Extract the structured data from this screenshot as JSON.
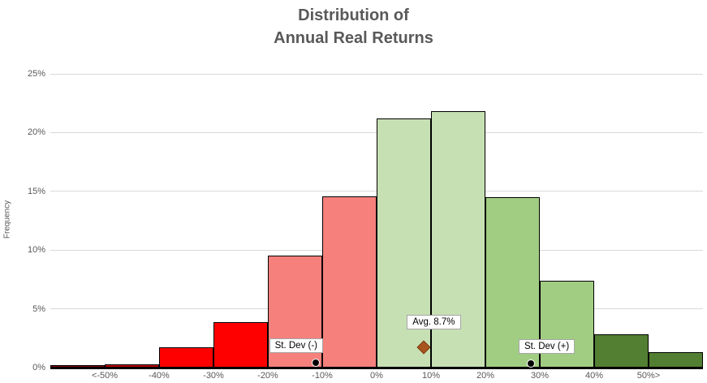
{
  "chart_data": {
    "type": "bar",
    "subtype": "histogram",
    "title_lines": [
      "Distribution of",
      "Annual Real Returns"
    ],
    "ylabel": "Frequency",
    "xlabel": "",
    "ylim": [
      0,
      25
    ],
    "grid": "horizontal",
    "legend": "none",
    "colors": {
      "background": "#ffffff",
      "gridline": "#d9d9d9",
      "axis_line": "#000000",
      "text": "#595959",
      "bar_border": "#000000"
    },
    "yticks": [
      {
        "value": 0,
        "label": "0%"
      },
      {
        "value": 5,
        "label": "5%"
      },
      {
        "value": 10,
        "label": "10%"
      },
      {
        "value": 15,
        "label": "15%"
      },
      {
        "value": 20,
        "label": "20%"
      },
      {
        "value": 25,
        "label": "25%"
      }
    ],
    "x_edge_ticks": [
      {
        "value": -50,
        "label": "<-50%"
      },
      {
        "value": -40,
        "label": "-40%"
      },
      {
        "value": -30,
        "label": "-30%"
      },
      {
        "value": -20,
        "label": "-20%"
      },
      {
        "value": -10,
        "label": "-10%"
      },
      {
        "value": 0,
        "label": "0%"
      },
      {
        "value": 10,
        "label": "10%"
      },
      {
        "value": 20,
        "label": "20%"
      },
      {
        "value": 30,
        "label": "30%"
      },
      {
        "value": 40,
        "label": "40%"
      },
      {
        "value": 50,
        "label": "50%>"
      }
    ],
    "bins": [
      {
        "range": "below -50%",
        "from": -60,
        "to": -50,
        "value": 0.2,
        "color": "#800000"
      },
      {
        "range": "-50% to -40%",
        "from": -50,
        "to": -40,
        "value": 0.3,
        "color": "#b80000"
      },
      {
        "range": "-40% to -30%",
        "from": -40,
        "to": -30,
        "value": 1.7,
        "color": "#fe0000"
      },
      {
        "range": "-30% to -20%",
        "from": -30,
        "to": -20,
        "value": 3.9,
        "color": "#fe0000"
      },
      {
        "range": "-20% to -10%",
        "from": -20,
        "to": -10,
        "value": 9.5,
        "color": "#f5807c"
      },
      {
        "range": "-10% to 0%",
        "from": -10,
        "to": 0,
        "value": 14.6,
        "color": "#f5807c"
      },
      {
        "range": "0% to 10%",
        "from": 0,
        "to": 10,
        "value": 21.2,
        "color": "#c6e0b4"
      },
      {
        "range": "10% to 20%",
        "from": 10,
        "to": 20,
        "value": 21.8,
        "color": "#c6e0b4"
      },
      {
        "range": "20% to 30%",
        "from": 20,
        "to": 30,
        "value": 14.5,
        "color": "#a1cd82"
      },
      {
        "range": "30% to 40%",
        "from": 30,
        "to": 40,
        "value": 7.4,
        "color": "#a1cd82"
      },
      {
        "range": "40% to 50%",
        "from": 40,
        "to": 50,
        "value": 2.8,
        "color": "#527f32"
      },
      {
        "range": "above 50%",
        "from": 50,
        "to": 60,
        "value": 1.3,
        "color": "#527f32"
      }
    ],
    "annotations": [
      {
        "text": "St. Dev (-)",
        "marker": "circle",
        "x": -11.1,
        "marker_color": "#000000"
      },
      {
        "text": "Avg. 8.7%",
        "marker": "diamond",
        "x": 8.7,
        "marker_color": "#a9551e"
      },
      {
        "text": "St. Dev (+)",
        "marker": "circle",
        "x": 28.5,
        "marker_color": "#000000"
      }
    ]
  }
}
